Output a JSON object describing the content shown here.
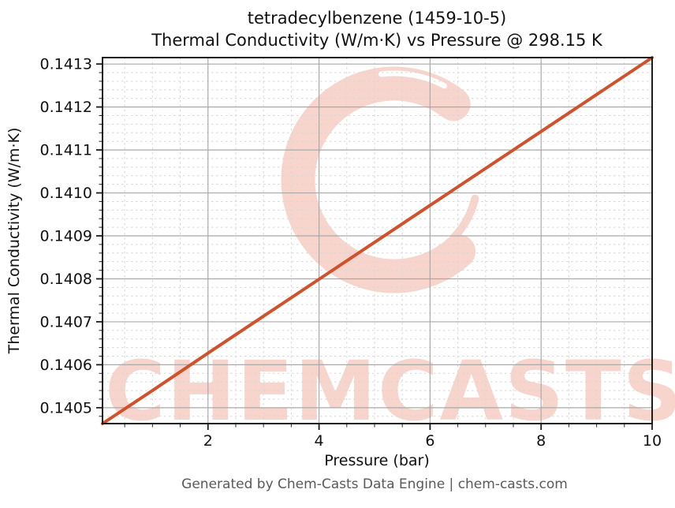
{
  "page": {
    "title_line1": "tetradecylbenzene (1459-10-5)",
    "title_line2": "Thermal Conductivity (W/m·K) vs Pressure @ 298.15 K",
    "footer": "Generated by Chem-Casts Data Engine | chem-casts.com"
  },
  "watermark": {
    "text": "CHEMCASTS",
    "color": "#f1b3a3",
    "opacity": 0.55
  },
  "chart_data": {
    "type": "line",
    "title": "tetradecylbenzene (1459-10-5)\nThermal Conductivity (W/m·K) vs Pressure @ 298.15 K",
    "xlabel": "Pressure (bar)",
    "ylabel": "Thermal Conductivity (W/m·K)",
    "xlim": [
      0.1,
      10
    ],
    "ylim": [
      0.140463,
      0.141315
    ],
    "x_major_ticks": [
      2,
      4,
      6,
      8,
      10
    ],
    "x_tick_labels": [
      "2",
      "4",
      "6",
      "8",
      "10"
    ],
    "x_minor_step": 0.5,
    "y_major_ticks": [
      0.1405,
      0.1406,
      0.1407,
      0.1408,
      0.1409,
      0.141,
      0.1411,
      0.1412,
      0.1413
    ],
    "y_tick_labels": [
      "0.1405",
      "0.1406",
      "0.1407",
      "0.1408",
      "0.1409",
      "0.1410",
      "0.1411",
      "0.1412",
      "0.1413"
    ],
    "y_minor_step": 2e-05,
    "grid": true,
    "legend_position": "none",
    "colors": {
      "line": "#d0522b",
      "major_grid": "#a9a9a9",
      "minor_grid": "#d6d6d6",
      "spine": "#1c1c1c"
    },
    "series": [
      {
        "name": "thermal-conductivity-vs-pressure",
        "x": [
          0.1,
          1,
          2,
          3,
          4,
          5,
          6,
          7,
          8,
          9,
          10
        ],
        "y": [
          0.140463,
          0.14054,
          0.140627,
          0.140713,
          0.140799,
          0.140885,
          0.140971,
          0.141057,
          0.141143,
          0.141229,
          0.141315
        ]
      }
    ]
  }
}
